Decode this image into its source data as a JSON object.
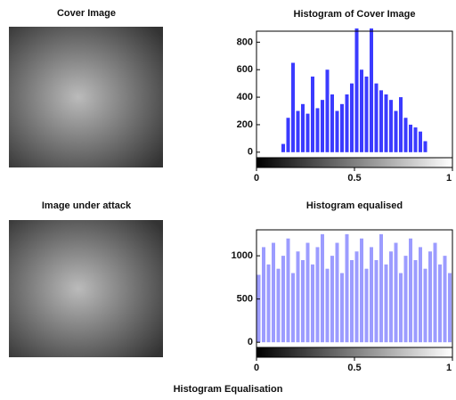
{
  "figure_title": "Histogram Equalisation",
  "images": [
    {
      "title": "Cover Image"
    },
    {
      "title": "Image under attack"
    }
  ],
  "chart_data": [
    {
      "type": "histogram",
      "title": "Histogram of Cover Image",
      "color": "#3b3bff",
      "bins": [
        0,
        0.025,
        0.05,
        0.075,
        0.1,
        0.125,
        0.15,
        0.175,
        0.2,
        0.225,
        0.25,
        0.275,
        0.3,
        0.325,
        0.35,
        0.375,
        0.4,
        0.425,
        0.45,
        0.475,
        0.5,
        0.525,
        0.55,
        0.575,
        0.6,
        0.625,
        0.65,
        0.675,
        0.7,
        0.725,
        0.75,
        0.775,
        0.8,
        0.825,
        0.85,
        0.875,
        0.9,
        0.925,
        0.95,
        0.975,
        1
      ],
      "values": [
        0,
        0,
        0,
        0,
        0,
        60,
        250,
        650,
        300,
        350,
        280,
        550,
        320,
        380,
        600,
        420,
        300,
        350,
        420,
        500,
        900,
        600,
        550,
        900,
        500,
        450,
        420,
        380,
        300,
        400,
        250,
        200,
        180,
        150,
        80,
        0,
        0,
        0,
        0,
        0
      ],
      "xlim": [
        0,
        1
      ],
      "xticks": [
        0,
        0.5,
        1
      ],
      "ylim": [
        -40,
        880
      ],
      "yticks": [
        0,
        200,
        400,
        600,
        800
      ]
    },
    {
      "type": "histogram",
      "title": "Histogram equalised",
      "color": "#9c9cff",
      "bins": [
        0,
        0.025,
        0.05,
        0.075,
        0.1,
        0.125,
        0.15,
        0.175,
        0.2,
        0.225,
        0.25,
        0.275,
        0.3,
        0.325,
        0.35,
        0.375,
        0.4,
        0.425,
        0.45,
        0.475,
        0.5,
        0.525,
        0.55,
        0.575,
        0.6,
        0.625,
        0.65,
        0.675,
        0.7,
        0.725,
        0.75,
        0.775,
        0.8,
        0.825,
        0.85,
        0.875,
        0.9,
        0.925,
        0.95,
        0.975,
        1
      ],
      "values": [
        780,
        1100,
        900,
        1150,
        850,
        1000,
        1200,
        800,
        1050,
        950,
        1150,
        900,
        1100,
        1250,
        850,
        1000,
        1150,
        800,
        1250,
        950,
        1050,
        1200,
        850,
        1100,
        950,
        1250,
        900,
        1050,
        1150,
        800,
        1000,
        1200,
        950,
        1100,
        850,
        1050,
        1150,
        900,
        1000,
        800
      ],
      "xlim": [
        0,
        1
      ],
      "xticks": [
        0,
        0.5,
        1
      ],
      "ylim": [
        -60,
        1300
      ],
      "yticks": [
        0,
        500,
        1000
      ]
    }
  ]
}
